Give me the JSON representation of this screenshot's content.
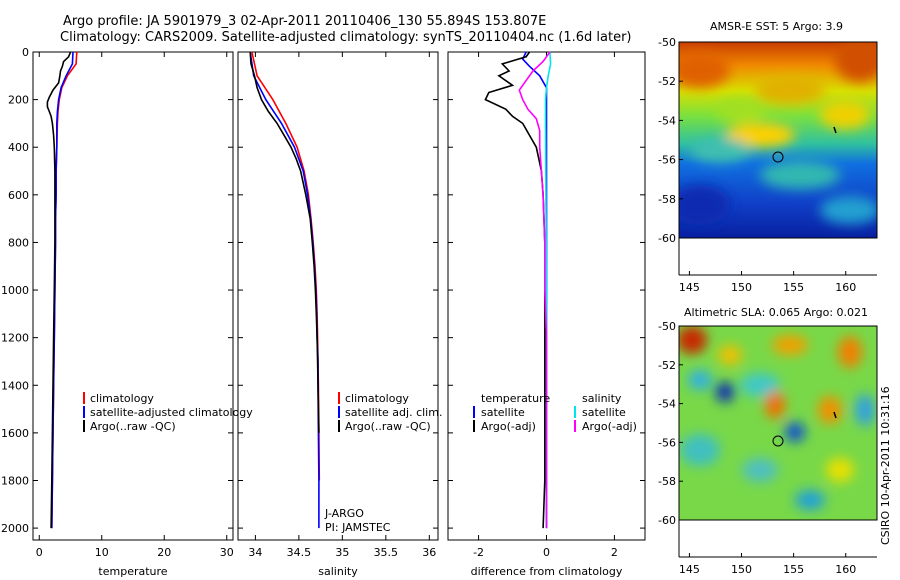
{
  "header": {
    "line1": "Argo profile: JA 5901979_3 02-Apr-2011 20110406_130 55.894S 153.807E",
    "line2": "Climatology: CARS2009. Satellite-adjusted climatology: synTS_20110404.nc (1.6d later)"
  },
  "colors": {
    "climatology": "#ff0000",
    "satellite": "#0000ff",
    "argo": "#000000",
    "argo_salinity_diff": "#ff00ff",
    "satellite_salinity_diff": "#00e5ee"
  },
  "chart_data": [
    {
      "id": "temperature-profile",
      "type": "line",
      "xlabel": "temperature",
      "ylabel": "",
      "xlim": [
        -1,
        31
      ],
      "ylim": [
        0,
        2050
      ],
      "y_reversed": true,
      "xticks": [
        "0",
        "10",
        "20",
        "30"
      ],
      "yticks": [
        "0",
        "200",
        "400",
        "600",
        "800",
        "1000",
        "1200",
        "1400",
        "1600",
        "1800",
        "2000"
      ],
      "legend": [
        "climatology",
        "satellite-adjusted climatology",
        "Argo(..raw -QC)"
      ],
      "series": [
        {
          "name": "climatology",
          "color": "#ff0000",
          "depth": [
            0,
            50,
            100,
            150,
            200,
            250,
            300,
            400,
            500,
            600,
            700,
            800,
            1000,
            1200,
            1400,
            1600,
            1800,
            2000
          ],
          "values": [
            6.0,
            5.9,
            4.5,
            3.6,
            3.2,
            3.0,
            2.9,
            2.8,
            2.7,
            2.7,
            2.6,
            2.6,
            2.5,
            2.4,
            2.3,
            2.2,
            2.1,
            2.0
          ]
        },
        {
          "name": "satellite-adjusted climatology",
          "color": "#0000ff",
          "depth": [
            0,
            50,
            100,
            150,
            200,
            250,
            300,
            400,
            500,
            600,
            700,
            800,
            1000,
            1200,
            1400,
            1600,
            1800,
            2000
          ],
          "values": [
            5.4,
            5.3,
            4.3,
            3.5,
            3.1,
            2.9,
            2.8,
            2.8,
            2.7,
            2.7,
            2.6,
            2.6,
            2.5,
            2.4,
            2.3,
            2.2,
            2.1,
            2.0
          ]
        },
        {
          "name": "Argo(..raw -QC)",
          "color": "#000000",
          "depth": [
            0,
            20,
            40,
            60,
            80,
            100,
            130,
            160,
            190,
            210,
            230,
            250,
            270,
            300,
            350,
            400,
            500,
            600,
            800,
            1000,
            1200,
            1400,
            1600,
            1800,
            2000
          ],
          "values": [
            5.0,
            4.7,
            3.9,
            3.7,
            3.4,
            3.3,
            3.1,
            2.2,
            1.6,
            1.3,
            1.3,
            1.6,
            1.9,
            2.1,
            2.3,
            2.4,
            2.5,
            2.5,
            2.5,
            2.4,
            2.3,
            2.2,
            2.1,
            2.0,
            1.9
          ]
        }
      ]
    },
    {
      "id": "salinity-profile",
      "type": "line",
      "xlabel": "salinity",
      "ylabel": "",
      "xlim": [
        33.8,
        36.1
      ],
      "ylim": [
        0,
        2050
      ],
      "y_reversed": true,
      "xticks": [
        "34",
        "34.5",
        "35",
        "35.5",
        "36"
      ],
      "legend": [
        "climatology",
        "satellite adj. clim.",
        "Argo(..raw -QC)"
      ],
      "annotation": [
        "J-ARGO",
        "PI: JAMSTEC"
      ],
      "series": [
        {
          "name": "climatology",
          "color": "#ff0000",
          "depth": [
            0,
            100,
            200,
            300,
            400,
            500,
            600,
            700,
            800,
            900,
            1000,
            1100,
            1200,
            1300,
            1400,
            1600,
            1800
          ],
          "values": [
            33.96,
            34.02,
            34.2,
            34.35,
            34.48,
            34.56,
            34.61,
            34.64,
            34.665,
            34.685,
            34.7,
            34.71,
            34.715,
            34.72,
            34.725,
            34.73,
            34.735
          ]
        },
        {
          "name": "satellite adj. clim.",
          "color": "#0000ff",
          "depth": [
            0,
            100,
            200,
            300,
            400,
            500,
            600,
            700,
            800,
            900,
            1000,
            1100,
            1200,
            1300,
            1400,
            1600,
            1800,
            2000
          ],
          "values": [
            33.94,
            33.98,
            34.12,
            34.3,
            34.45,
            34.55,
            34.6,
            34.635,
            34.66,
            34.68,
            34.695,
            34.705,
            34.71,
            34.72,
            34.72,
            34.725,
            34.73,
            34.73
          ]
        },
        {
          "name": "Argo(..raw -QC)",
          "color": "#000000",
          "depth": [
            0,
            50,
            100,
            150,
            200,
            250,
            300,
            350,
            400,
            450,
            500,
            600,
            700,
            800,
            900,
            1000,
            1100,
            1200,
            1300,
            1400,
            1600
          ],
          "values": [
            33.94,
            33.95,
            33.99,
            34.02,
            34.07,
            34.15,
            34.25,
            34.33,
            34.41,
            34.47,
            34.52,
            34.58,
            34.63,
            34.655,
            34.675,
            34.69,
            34.7,
            34.71,
            34.715,
            34.72,
            34.73
          ]
        }
      ]
    },
    {
      "id": "difference-profile",
      "type": "line",
      "xlabel": "difference from climatology",
      "ylabel": "",
      "xlim": [
        -2.9,
        2.9
      ],
      "ylim": [
        0,
        2050
      ],
      "y_reversed": true,
      "xticks": [
        "-2",
        "0",
        "2"
      ],
      "legend_headers": [
        "temperature",
        "salinity"
      ],
      "legend": [
        "satellite",
        "Argo(-adj)",
        "satellite",
        "Argo(-adj)"
      ],
      "series": [
        {
          "name": "temperature satellite",
          "color": "#0000ff",
          "depth": [
            0,
            30,
            60,
            100,
            150,
            200,
            300,
            500,
            800,
            1200,
            1600,
            2000
          ],
          "values": [
            -0.6,
            -0.7,
            -0.5,
            -0.2,
            0.0,
            0.0,
            0.0,
            0.0,
            0.0,
            0.0,
            0.0,
            0.0
          ]
        },
        {
          "name": "temperature Argo(-adj)",
          "color": "#000000",
          "depth": [
            0,
            20,
            50,
            80,
            100,
            140,
            170,
            200,
            240,
            270,
            300,
            400,
            500,
            600,
            800,
            1000,
            1200,
            1500,
            1800,
            2000
          ],
          "values": [
            -0.5,
            -0.6,
            -1.3,
            -1.1,
            -1.4,
            -1.0,
            -1.7,
            -1.8,
            -1.2,
            -1.0,
            -0.7,
            -0.3,
            -0.15,
            -0.1,
            -0.05,
            -0.05,
            -0.05,
            -0.05,
            -0.05,
            -0.1
          ]
        },
        {
          "name": "salinity satellite",
          "color": "#00e5ee",
          "depth": [
            0,
            50,
            100,
            150,
            200,
            300,
            500,
            800,
            1200,
            1600,
            2000
          ],
          "values": [
            0.1,
            0.12,
            0.05,
            0.0,
            -0.03,
            -0.03,
            -0.02,
            -0.01,
            0.0,
            0.0,
            0.0
          ]
        },
        {
          "name": "salinity Argo(-adj)",
          "color": "#ff00ff",
          "depth": [
            0,
            40,
            80,
            120,
            160,
            200,
            240,
            280,
            330,
            400,
            500,
            600,
            800,
            1000,
            1200,
            1500,
            1800,
            2000
          ],
          "values": [
            0.1,
            -0.1,
            -0.4,
            -0.6,
            -0.8,
            -0.7,
            -0.55,
            -0.3,
            -0.2,
            -0.2,
            -0.15,
            -0.1,
            -0.05,
            -0.05,
            0.0,
            0.0,
            0.0,
            0.0
          ]
        }
      ]
    }
  ],
  "maps": [
    {
      "title": "AMSR-E SST: 5 Argo: 3.9",
      "xticks": [
        "145",
        "150",
        "155",
        "160"
      ],
      "yticks": [
        "-50",
        "-52",
        "-54",
        "-56",
        "-58",
        "-60"
      ],
      "lon_range": [
        144,
        163
      ],
      "lat_range": [
        -50,
        -60
      ],
      "profile_location": {
        "lon": 153.8,
        "lat": -55.9
      }
    },
    {
      "title": "Altimetric SLA: 0.065 Argo: 0.021",
      "xticks": [
        "145",
        "150",
        "155",
        "160"
      ],
      "yticks": [
        "-50",
        "-52",
        "-54",
        "-56",
        "-58",
        "-60"
      ],
      "lon_range": [
        144,
        163
      ],
      "lat_range": [
        -50,
        -60
      ],
      "profile_location": {
        "lon": 153.8,
        "lat": -55.9
      }
    }
  ],
  "side_stamp": "CSIRO 10-Apr-2011 10:31:16"
}
